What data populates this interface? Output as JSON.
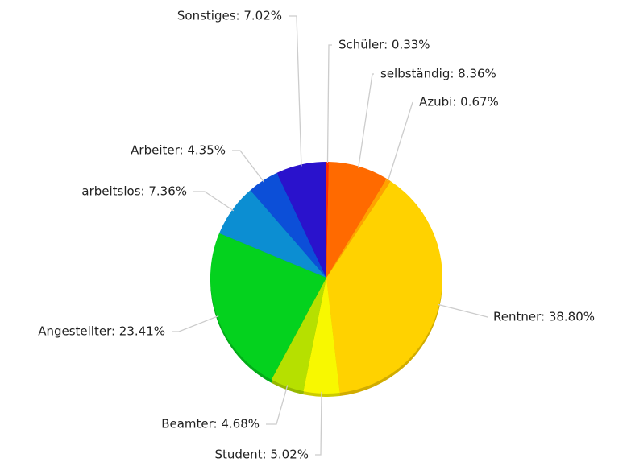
{
  "chart_data": {
    "type": "pie",
    "categories": [
      "Schüler",
      "selbständig",
      "Azubi",
      "Rentner",
      "Student",
      "Beamter",
      "Angestellter",
      "arbeitslos",
      "Arbeiter",
      "Sonstiges"
    ],
    "values": [
      0.33,
      8.36,
      0.67,
      38.8,
      5.02,
      4.68,
      23.41,
      7.36,
      4.35,
      7.02
    ],
    "value_labels": [
      "Schüler: 0.33%",
      "selbständig: 8.36%",
      "Azubi: 0.67%",
      "Rentner: 38.80%",
      "Student: 5.02%",
      "Beamter: 4.68%",
      "Angestellter: 23.41%",
      "arbeitslos: 7.36%",
      "Arbeiter: 4.35%",
      "Sonstiges: 7.02%"
    ],
    "colors": [
      "#ff2a00",
      "#ff6a00",
      "#ffa200",
      "#ffd200",
      "#f8f800",
      "#b6e000",
      "#04d21e",
      "#0c8ed2",
      "#0c4fd8",
      "#2a12cc"
    ]
  }
}
